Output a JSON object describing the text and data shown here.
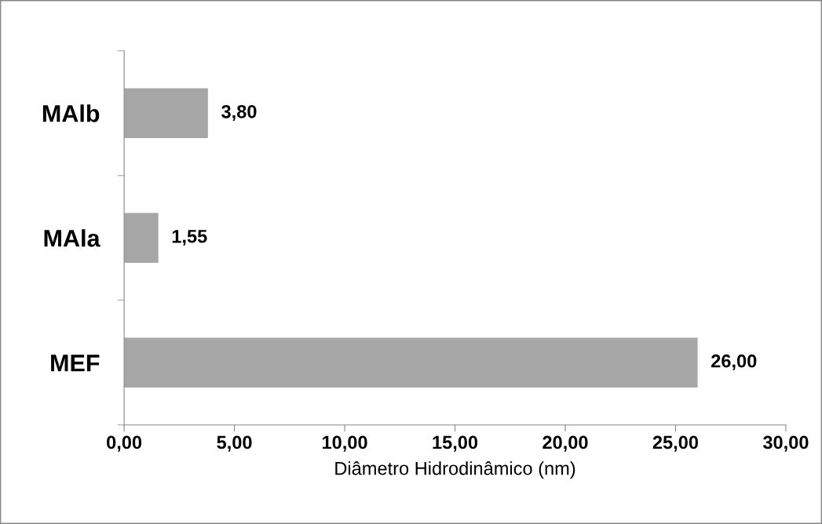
{
  "chart_data": {
    "type": "bar",
    "orientation": "horizontal",
    "categories": [
      "MAlb",
      "MAla",
      "MEF"
    ],
    "values": [
      3.8,
      1.55,
      26.0
    ],
    "value_labels": [
      "3,80",
      "1,55",
      "26,00"
    ],
    "color": "#a6a6a6",
    "xlabel": "Diâmetro Hidrodinâmico (nm)",
    "xlim": [
      0,
      30
    ],
    "xticks": [
      {
        "value": 0,
        "label": "0,00"
      },
      {
        "value": 5,
        "label": "5,00"
      },
      {
        "value": 10,
        "label": "10,00"
      },
      {
        "value": 15,
        "label": "15,00"
      },
      {
        "value": 20,
        "label": "20,00"
      },
      {
        "value": 25,
        "label": "25,00"
      },
      {
        "value": 30,
        "label": "30,00"
      }
    ],
    "grid": false,
    "legend": false
  }
}
